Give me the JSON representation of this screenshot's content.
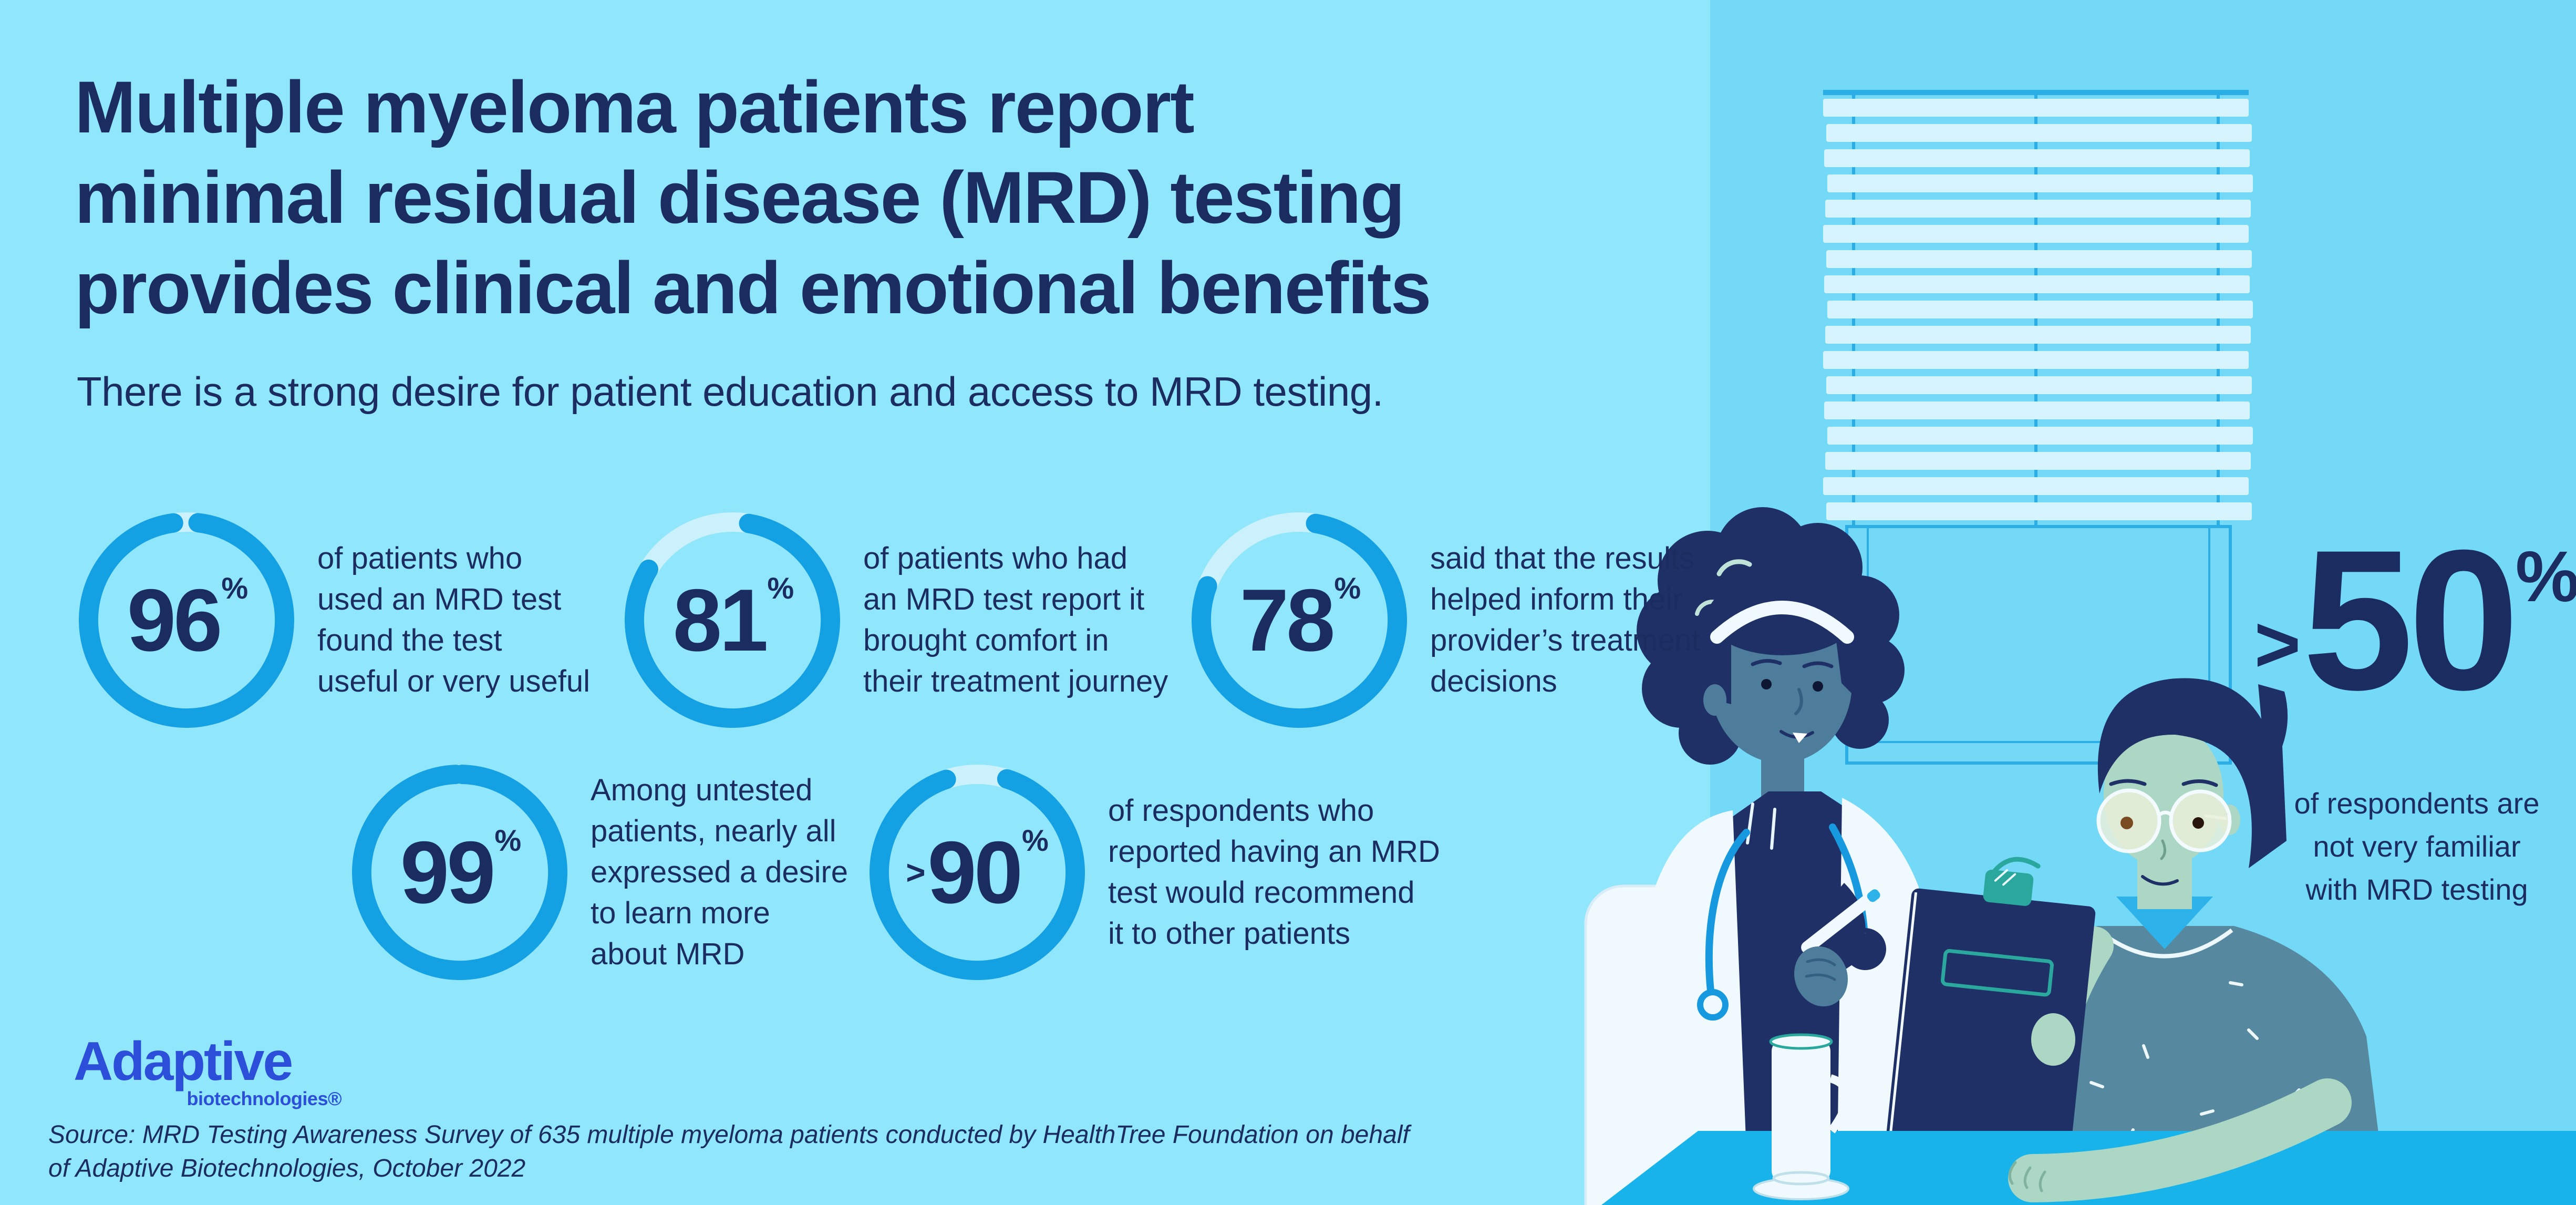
{
  "colors": {
    "bg_left": "#90E6FB",
    "bg_right": "#74D9F6",
    "navy": "#1B2C61",
    "ring_arc": "#14A1E3",
    "ring_track": "#CBF1FD",
    "logo_blue": "#2B4FD9",
    "window_line": "#2BADE6",
    "blind_slat": "#D5F4FE",
    "table": "#17B3EA",
    "doctor_skin": "#4E7D9C",
    "patient_skin": "#ABD7C4",
    "figure_navy": "#1E3066",
    "shirt_teal": "#56899F",
    "coat_white": "#F0FAFE",
    "accent_cyan": "#2DB3EA",
    "clip_teal": "#2AA89E"
  },
  "header": {
    "title_lines": [
      "Multiple myeloma patients report",
      "minimal residual disease (MRD) testing",
      "provides clinical and emotional benefits"
    ],
    "subtitle": "There is a strong desire for patient education and access to MRD testing."
  },
  "stats": [
    {
      "prefix": "",
      "value": "96",
      "suffix": "%",
      "percent": 96,
      "lines": [
        "of patients who",
        "used an MRD test",
        "found the test",
        "useful or very useful"
      ]
    },
    {
      "prefix": "",
      "value": "81",
      "suffix": "%",
      "percent": 81,
      "lines": [
        "of patients who had",
        "an MRD test report it",
        "brought comfort in",
        "their treatment journey"
      ]
    },
    {
      "prefix": "",
      "value": "78",
      "suffix": "%",
      "percent": 78,
      "lines": [
        "said that the results",
        "helped inform their",
        "provider’s treatment",
        "decisions"
      ]
    },
    {
      "prefix": "",
      "value": "99",
      "suffix": "%",
      "percent": 99,
      "lines": [
        "Among untested",
        "patients, nearly all",
        "expressed a desire",
        "to learn more",
        "about MRD"
      ]
    },
    {
      "prefix": ">",
      "value": "90",
      "suffix": "%",
      "percent": 90,
      "lines": [
        "of respondents who",
        "reported having an MRD",
        "test would recommend",
        "it to other patients"
      ]
    }
  ],
  "big_stat": {
    "prefix": ">",
    "value": "50",
    "suffix": "%",
    "lines": [
      "of respondents are",
      "not very familiar",
      "with MRD testing"
    ]
  },
  "chart_data": {
    "type": "donut",
    "title": "Multiple myeloma patients report minimal residual disease (MRD) testing provides clinical and emotional benefits",
    "units": "%",
    "legend_position": "right-of-each-donut",
    "series": [
      {
        "value": 96,
        "qualifier": "",
        "label": "of patients who used an MRD test found the test useful or very useful"
      },
      {
        "value": 81,
        "qualifier": "",
        "label": "of patients who had an MRD test report it brought comfort in their treatment journey"
      },
      {
        "value": 78,
        "qualifier": "",
        "label": "said that the results helped inform their provider’s treatment decisions"
      },
      {
        "value": 99,
        "qualifier": "",
        "label": "Among untested patients, nearly all expressed a desire to learn more about MRD"
      },
      {
        "value": 90,
        "qualifier": ">",
        "label": "of respondents who reported having an MRD test would recommend it to other patients"
      }
    ],
    "standalone_stat": {
      "value": 50,
      "qualifier": ">",
      "label": "of respondents are not very familiar with MRD testing"
    }
  },
  "logo": {
    "name": "Adaptive",
    "tagline": "biotechnologies®"
  },
  "source_lines": [
    "Source: MRD Testing Awareness Survey of 635 multiple myeloma patients conducted by HealthTree Foundation on behalf",
    "of Adaptive Biotechnologies, October 2022"
  ]
}
